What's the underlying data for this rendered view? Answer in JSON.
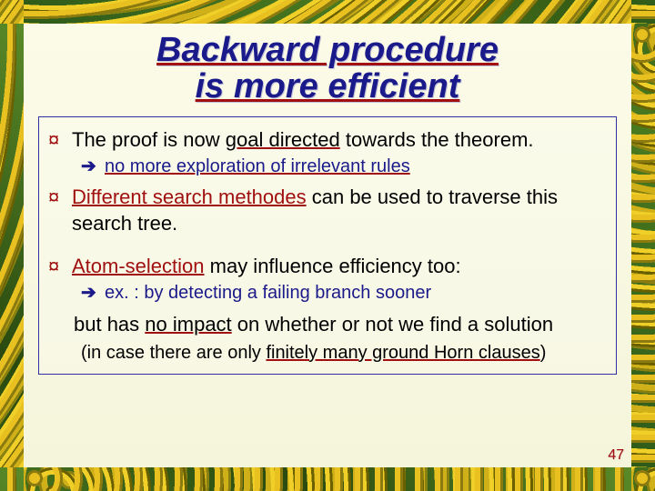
{
  "title_line1": "Backward procedure",
  "title_line2": "is more efficient",
  "bullets": {
    "b1_pre": "The proof is now ",
    "b1_goal": "goal directed",
    "b1_post": " towards the theorem.",
    "s1": "no more exploration of irrelevant rules",
    "b2_method": "Different search methodes",
    "b2_post": " can be used to traverse this search tree.",
    "b3_atom": "Atom-selection",
    "b3_post": " may influence efficiency too:",
    "s3": "ex. : by detecting a failing branch sooner",
    "cont_pre": "but has ",
    "cont_mid": "no impact",
    "cont_post": " on whether or not we find a solution",
    "paren_pre": "(in case there are only ",
    "paren_mid": "finitely many ground Horn clauses",
    "paren_post": ")"
  },
  "marks": {
    "bullet": "¤",
    "arrow": "➔"
  },
  "pagenum": "47",
  "colors": {
    "title_text": "#1a1a8a",
    "underline_red": "#a01010",
    "bullet_red": "#a01010",
    "sub_blue": "#1a1a8a",
    "box_border": "#3030a0",
    "bg_top": "#fbfbe8",
    "bg_bottom": "#f5f5dc"
  }
}
